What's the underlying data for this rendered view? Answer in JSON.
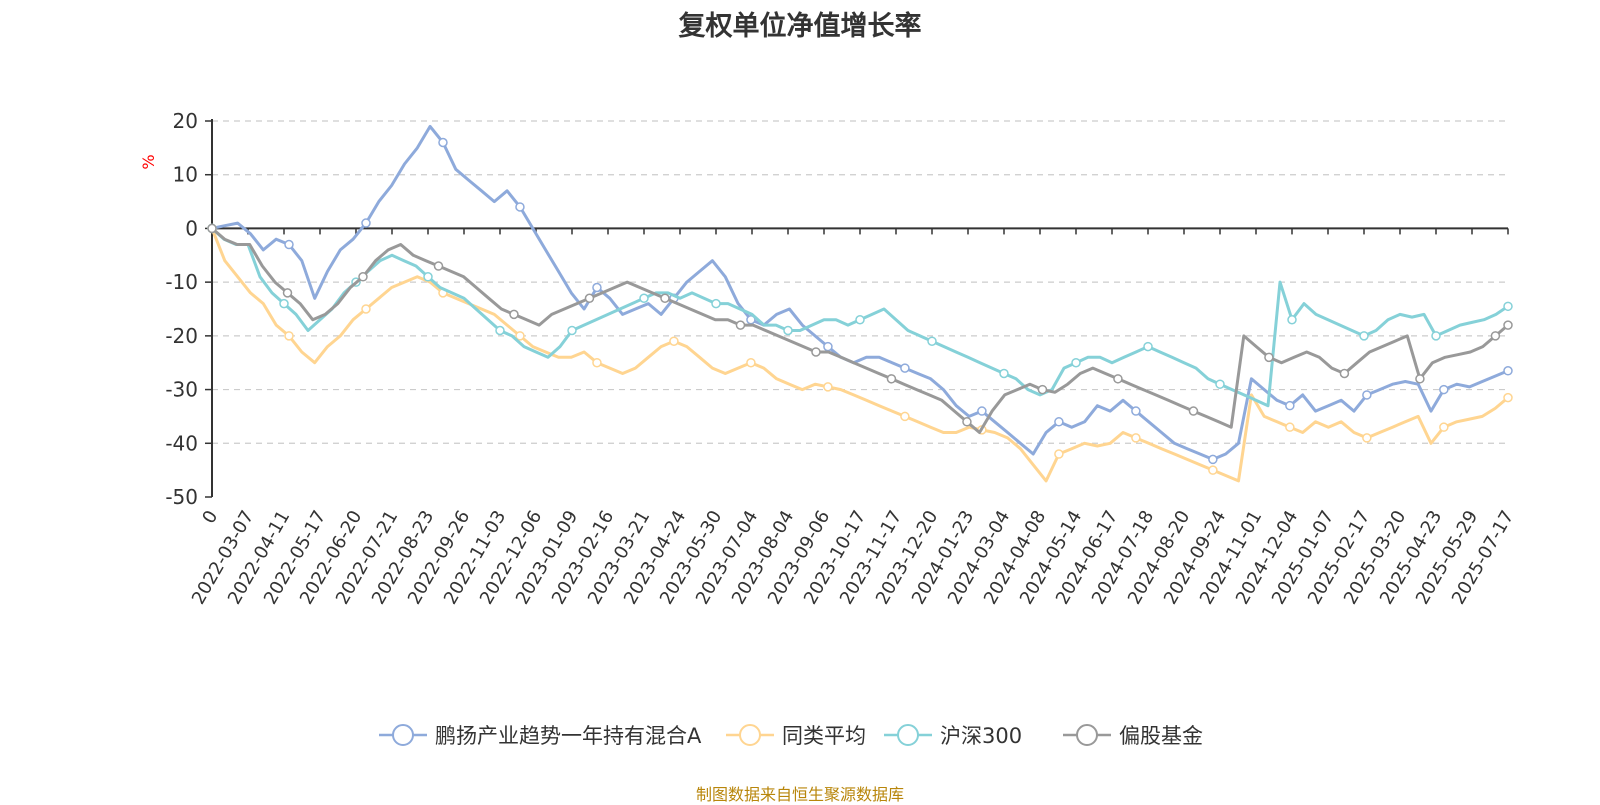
{
  "title": "复权单位净值增长率",
  "source_note": "制图数据来自恒生聚源数据库",
  "colors": {
    "axis": "#333333",
    "grid": "#cccccc",
    "unit": "#ff0000",
    "source": "#b8860b"
  },
  "chart_data": {
    "type": "line",
    "title": "复权单位净值增长率",
    "ylabel": "%",
    "ylim": [
      -50,
      20
    ],
    "yticks": [
      20,
      10,
      0,
      -10,
      -20,
      -30,
      -40,
      -50
    ],
    "grid": true,
    "legend_position": "bottom",
    "x_tick_labels": [
      "0",
      "2022-03-07",
      "2022-04-11",
      "2022-05-17",
      "2022-06-20",
      "2022-07-21",
      "2022-08-23",
      "2022-09-26",
      "2022-11-03",
      "2022-12-06",
      "2023-01-09",
      "2023-02-16",
      "2023-03-21",
      "2023-04-24",
      "2023-05-30",
      "2023-07-04",
      "2023-08-04",
      "2023-09-06",
      "2023-10-17",
      "2023-11-17",
      "2023-12-20",
      "2024-01-23",
      "2024-03-04",
      "2024-04-08",
      "2024-05-14",
      "2024-06-17",
      "2024-07-18",
      "2024-08-20",
      "2024-09-24",
      "2024-11-01",
      "2024-12-04",
      "2025-01-07",
      "2025-02-17",
      "2025-03-20",
      "2025-04-23",
      "2025-05-29",
      "2025-07-17"
    ],
    "series": [
      {
        "name": "鹏扬产业趋势一年持有混合A",
        "color": "#8eaadb",
        "values": [
          0,
          0.5,
          1,
          -1,
          -4,
          -2,
          -3,
          -6,
          -13,
          -8,
          -4,
          -2,
          1,
          5,
          8,
          12,
          15,
          19,
          16,
          11,
          9,
          7,
          5,
          7,
          4,
          0,
          -4,
          -8,
          -12,
          -15,
          -11,
          -13,
          -16,
          -15,
          -14,
          -16,
          -13,
          -10,
          -8,
          -6,
          -9,
          -14,
          -17,
          -18,
          -16,
          -15,
          -18,
          -20,
          -22,
          -24,
          -25,
          -24,
          -24,
          -25,
          -26,
          -27,
          -28,
          -30,
          -33,
          -35,
          -34,
          -36,
          -38,
          -40,
          -42,
          -38,
          -36,
          -37,
          -36,
          -33,
          -34,
          -32,
          -34,
          -36,
          -38,
          -40,
          -41,
          -42,
          -43,
          -42,
          -40,
          -28,
          -30,
          -32,
          -33,
          -31,
          -34,
          -33,
          -32,
          -34,
          -31,
          -30,
          -29,
          -28.5,
          -29,
          -34,
          -30,
          -29,
          -29.5,
          -28.5,
          -27.5,
          -26.5
        ]
      },
      {
        "name": "同类平均",
        "color": "#ffd591",
        "values": [
          0,
          -6,
          -9,
          -12,
          -14,
          -18,
          -20,
          -23,
          -25,
          -22,
          -20,
          -17,
          -15,
          -13,
          -11,
          -10,
          -9,
          -10,
          -12,
          -13,
          -14,
          -15,
          -16,
          -18,
          -20,
          -22,
          -23,
          -24,
          -24,
          -23,
          -25,
          -26,
          -27,
          -26,
          -24,
          -22,
          -21,
          -22,
          -24,
          -26,
          -27,
          -26,
          -25,
          -26,
          -28,
          -29,
          -30,
          -29,
          -29.5,
          -30,
          -31,
          -32,
          -33,
          -34,
          -35,
          -36,
          -37,
          -38,
          -38,
          -37,
          -37.5,
          -38,
          -39,
          -41,
          -44,
          -47,
          -42,
          -41,
          -40,
          -40.5,
          -40,
          -38,
          -39,
          -40,
          -41,
          -42,
          -43,
          -44,
          -45,
          -46,
          -47,
          -31,
          -35,
          -36,
          -37,
          -38,
          -36,
          -37,
          -36,
          -38,
          -39,
          -38,
          -37,
          -36,
          -35,
          -40,
          -37,
          -36,
          -35.5,
          -35,
          -33.5,
          -31.5
        ]
      },
      {
        "name": "沪深300",
        "color": "#85d1d8",
        "values": [
          0,
          -2,
          -3,
          -3,
          -9,
          -12,
          -14,
          -16,
          -19,
          -17,
          -15,
          -12,
          -10,
          -8,
          -6,
          -5,
          -6,
          -7,
          -9,
          -11,
          -12,
          -13,
          -15,
          -17,
          -19,
          -20,
          -22,
          -23,
          -24,
          -22,
          -19,
          -18,
          -17,
          -16,
          -15,
          -14,
          -13,
          -12,
          -12,
          -13,
          -12,
          -13,
          -14,
          -14,
          -15,
          -16,
          -18,
          -18,
          -19,
          -19,
          -18,
          -17,
          -17,
          -18,
          -17,
          -16,
          -15,
          -17,
          -19,
          -20,
          -21,
          -22,
          -23,
          -24,
          -25,
          -26,
          -27,
          -28,
          -30,
          -31,
          -30,
          -26,
          -25,
          -24,
          -24,
          -25,
          -24,
          -23,
          -22,
          -23,
          -24,
          -25,
          -26,
          -28,
          -29,
          -30,
          -31,
          -32,
          -33,
          -10,
          -17,
          -14,
          -16,
          -17,
          -18,
          -19,
          -20,
          -19,
          -17,
          -16,
          -16.5,
          -16,
          -20,
          -19,
          -18,
          -17.5,
          -17,
          -16,
          -14.5
        ]
      },
      {
        "name": "偏股基金",
        "color": "#999999",
        "values": [
          0,
          -2,
          -3,
          -3,
          -7,
          -10,
          -12,
          -14,
          -17,
          -16,
          -14,
          -11,
          -9,
          -6,
          -4,
          -3,
          -5,
          -6,
          -7,
          -8,
          -9,
          -11,
          -13,
          -15,
          -16,
          -17,
          -18,
          -16,
          -15,
          -14,
          -13,
          -12,
          -11,
          -10,
          -11,
          -12,
          -13,
          -14,
          -15,
          -16,
          -17,
          -17,
          -18,
          -18,
          -19,
          -20,
          -21,
          -22,
          -23,
          -23,
          -24,
          -25,
          -26,
          -27,
          -28,
          -29,
          -30,
          -31,
          -32,
          -34,
          -36,
          -38,
          -34,
          -31,
          -30,
          -29,
          -30,
          -30.5,
          -29,
          -27,
          -26,
          -27,
          -28,
          -29,
          -30,
          -31,
          -32,
          -33,
          -34,
          -35,
          -36,
          -37,
          -20,
          -22,
          -24,
          -25,
          -24,
          -23,
          -24,
          -26,
          -27,
          -25,
          -23,
          -22,
          -21,
          -20,
          -28,
          -25,
          -24,
          -23.5,
          -23,
          -22,
          -20,
          -18
        ]
      }
    ]
  }
}
